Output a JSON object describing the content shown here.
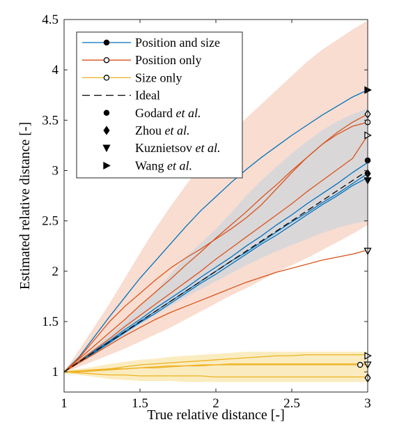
{
  "chart_data": {
    "type": "line",
    "xlabel": "True relative distance [-]",
    "ylabel": "Estimated relative distance [-]",
    "xlim": [
      1,
      3
    ],
    "ylim": [
      0.8,
      4.5
    ],
    "xticks": [
      "1",
      "1.5",
      "2",
      "2.5",
      "3"
    ],
    "yticks": [
      "1",
      "1.5",
      "2",
      "2.5",
      "3",
      "3.5",
      "4",
      "4.5"
    ],
    "grid": false,
    "legend_position": "top-left",
    "colors": {
      "position_and_size": "#0072BD",
      "position_only": "#D95319",
      "size_only": "#EDB120",
      "ideal": "#000000",
      "band_position_only": "#F8D9CC",
      "band_position_and_size": "#D5D6DB",
      "band_size_only": "#FBEAB9"
    },
    "legend": [
      {
        "label": "Position and size",
        "line": "solid",
        "color": "#0072BD",
        "marker": "filled-circle"
      },
      {
        "label": "Position only",
        "line": "solid",
        "color": "#D95319",
        "marker": "open-circle"
      },
      {
        "label": "Size only",
        "line": "solid",
        "color": "#EDB120",
        "marker": "open-circle"
      },
      {
        "label": "Ideal",
        "line": "dashed",
        "color": "#000000",
        "marker": "none"
      },
      {
        "label": "Godard",
        "label_suffix": " et al.",
        "marker": "filled-circle"
      },
      {
        "label": "Zhou",
        "label_suffix": " et al.",
        "marker": "filled-diamond"
      },
      {
        "label": "Kuznietsov",
        "label_suffix": " et al.",
        "marker": "filled-triangle-down"
      },
      {
        "label": "Wang",
        "label_suffix": " et al.",
        "marker": "filled-triangle-right"
      }
    ],
    "x": [
      1.0,
      1.1,
      1.2,
      1.3,
      1.4,
      1.5,
      1.6,
      1.7,
      1.8,
      1.9,
      2.0,
      2.1,
      2.2,
      2.3,
      2.4,
      2.5,
      2.6,
      2.7,
      2.8,
      2.9,
      3.0
    ],
    "bands": [
      {
        "group": "position_only",
        "upper": [
          1.0,
          1.22,
          1.45,
          1.68,
          1.93,
          2.18,
          2.42,
          2.64,
          2.85,
          3.05,
          3.22,
          3.38,
          3.52,
          3.66,
          3.8,
          3.94,
          4.08,
          4.2,
          4.3,
          4.4,
          4.49
        ],
        "lower": [
          1.0,
          1.05,
          1.11,
          1.17,
          1.23,
          1.3,
          1.37,
          1.44,
          1.52,
          1.6,
          1.68,
          1.76,
          1.83,
          1.91,
          1.99,
          2.06,
          2.13,
          2.21,
          2.29,
          2.37,
          2.46
        ]
      },
      {
        "group": "position_and_size",
        "upper": [
          1.0,
          1.12,
          1.24,
          1.37,
          1.5,
          1.65,
          1.8,
          1.97,
          2.14,
          2.28,
          2.42,
          2.58,
          2.75,
          2.9,
          3.04,
          3.17,
          3.29,
          3.4,
          3.49,
          3.56,
          3.62
        ],
        "lower": [
          1.0,
          1.09,
          1.18,
          1.27,
          1.37,
          1.47,
          1.56,
          1.65,
          1.74,
          1.82,
          1.9,
          1.98,
          2.06,
          2.13,
          2.2,
          2.26,
          2.32,
          2.38,
          2.43,
          2.47,
          2.5
        ]
      },
      {
        "group": "size_only",
        "upper": [
          1.02,
          1.03,
          1.05,
          1.08,
          1.1,
          1.12,
          1.13,
          1.15,
          1.16,
          1.17,
          1.18,
          1.19,
          1.2,
          1.2,
          1.2,
          1.2,
          1.2,
          1.2,
          1.2,
          1.2,
          1.2
        ],
        "lower": [
          0.98,
          0.97,
          0.95,
          0.93,
          0.92,
          0.91,
          0.91,
          0.91,
          0.9,
          0.9,
          0.9,
          0.9,
          0.9,
          0.9,
          0.9,
          0.9,
          0.9,
          0.9,
          0.9,
          0.9,
          0.9
        ]
      }
    ],
    "series": [
      {
        "group": "position_and_size",
        "values": [
          1.0,
          1.15,
          1.35,
          1.55,
          1.74,
          1.93,
          2.1,
          2.27,
          2.44,
          2.6,
          2.74,
          2.88,
          3.01,
          3.13,
          3.24,
          3.35,
          3.45,
          3.55,
          3.64,
          3.73,
          3.8
        ]
      },
      {
        "group": "position_and_size",
        "values": [
          1.0,
          1.1,
          1.2,
          1.3,
          1.4,
          1.5,
          1.6,
          1.7,
          1.8,
          1.9,
          2.0,
          2.1,
          2.19,
          2.29,
          2.39,
          2.49,
          2.58,
          2.68,
          2.77,
          2.87,
          2.97
        ]
      },
      {
        "group": "position_and_size",
        "values": [
          1.0,
          1.1,
          1.21,
          1.31,
          1.42,
          1.52,
          1.63,
          1.73,
          1.83,
          1.94,
          2.04,
          2.14,
          2.25,
          2.35,
          2.46,
          2.56,
          2.67,
          2.77,
          2.87,
          2.98,
          3.08
        ]
      },
      {
        "group": "position_and_size",
        "values": [
          1.0,
          1.1,
          1.19,
          1.29,
          1.39,
          1.49,
          1.58,
          1.68,
          1.78,
          1.88,
          1.97,
          2.07,
          2.17,
          2.27,
          2.36,
          2.46,
          2.56,
          2.66,
          2.75,
          2.85,
          2.93
        ]
      },
      {
        "group": "position_only",
        "values": [
          1.0,
          1.14,
          1.32,
          1.5,
          1.65,
          1.78,
          1.91,
          2.03,
          2.13,
          2.22,
          2.32,
          2.42,
          2.53,
          2.66,
          2.82,
          2.98,
          3.13,
          3.26,
          3.38,
          3.48,
          3.56
        ]
      },
      {
        "group": "position_only",
        "values": [
          1.0,
          1.13,
          1.26,
          1.39,
          1.52,
          1.66,
          1.79,
          1.92,
          2.06,
          2.19,
          2.33,
          2.46,
          2.59,
          2.73,
          2.86,
          3.0,
          3.13,
          3.26,
          3.36,
          3.44,
          3.48
        ]
      },
      {
        "group": "position_only",
        "values": [
          1.0,
          1.11,
          1.22,
          1.33,
          1.45,
          1.56,
          1.67,
          1.78,
          1.89,
          2.0,
          2.12,
          2.23,
          2.34,
          2.45,
          2.56,
          2.67,
          2.79,
          2.9,
          3.01,
          3.12,
          3.35
        ]
      },
      {
        "group": "position_only",
        "values": [
          1.0,
          1.09,
          1.18,
          1.27,
          1.36,
          1.44,
          1.52,
          1.59,
          1.65,
          1.71,
          1.77,
          1.83,
          1.89,
          1.94,
          1.99,
          2.03,
          2.07,
          2.11,
          2.14,
          2.17,
          2.21
        ]
      },
      {
        "group": "size_only",
        "values": [
          1.0,
          1.01,
          1.02,
          1.03,
          1.05,
          1.07,
          1.08,
          1.09,
          1.1,
          1.11,
          1.12,
          1.13,
          1.14,
          1.15,
          1.16,
          1.16,
          1.17,
          1.17,
          1.17,
          1.17,
          1.17
        ]
      },
      {
        "group": "size_only",
        "values": [
          1.0,
          1.01,
          1.02,
          1.03,
          1.03,
          1.04,
          1.05,
          1.06,
          1.06,
          1.07,
          1.07,
          1.08,
          1.08,
          1.08,
          1.08,
          1.08,
          1.08,
          1.08,
          1.08,
          1.08,
          1.08
        ]
      },
      {
        "group": "size_only",
        "values": [
          1.0,
          1.0,
          1.01,
          1.02,
          1.03,
          1.04,
          1.04,
          1.05,
          1.06,
          1.06,
          1.07,
          1.07,
          1.07,
          1.07,
          1.07,
          1.07,
          1.07,
          1.07,
          1.07,
          1.07,
          1.07
        ]
      },
      {
        "group": "size_only",
        "values": [
          1.0,
          0.99,
          0.98,
          0.97,
          0.97,
          0.96,
          0.96,
          0.96,
          0.96,
          0.96,
          0.95,
          0.95,
          0.95,
          0.95,
          0.95,
          0.95,
          0.95,
          0.95,
          0.95,
          0.95,
          0.95
        ]
      }
    ],
    "ideal": {
      "x": [
        1,
        3
      ],
      "y": [
        1,
        3
      ]
    },
    "endpoint_markers": [
      {
        "marker": "filled-triangle-right",
        "x": 3.0,
        "y": 3.8
      },
      {
        "marker": "open-diamond",
        "x": 3.0,
        "y": 3.56
      },
      {
        "marker": "open-circle",
        "x": 3.0,
        "y": 3.48
      },
      {
        "marker": "open-triangle-right",
        "x": 3.0,
        "y": 3.35
      },
      {
        "marker": "filled-circle",
        "x": 3.0,
        "y": 3.1
      },
      {
        "marker": "filled-diamond",
        "x": 3.0,
        "y": 2.97
      },
      {
        "marker": "filled-triangle-down",
        "x": 3.0,
        "y": 2.9
      },
      {
        "marker": "open-triangle-down",
        "x": 3.0,
        "y": 2.2
      },
      {
        "marker": "open-triangle-right",
        "x": 3.0,
        "y": 1.16
      },
      {
        "marker": "open-circle",
        "x": 2.95,
        "y": 1.07
      },
      {
        "marker": "open-triangle-down",
        "x": 3.0,
        "y": 1.07
      },
      {
        "marker": "open-diamond",
        "x": 3.0,
        "y": 0.94
      }
    ]
  }
}
